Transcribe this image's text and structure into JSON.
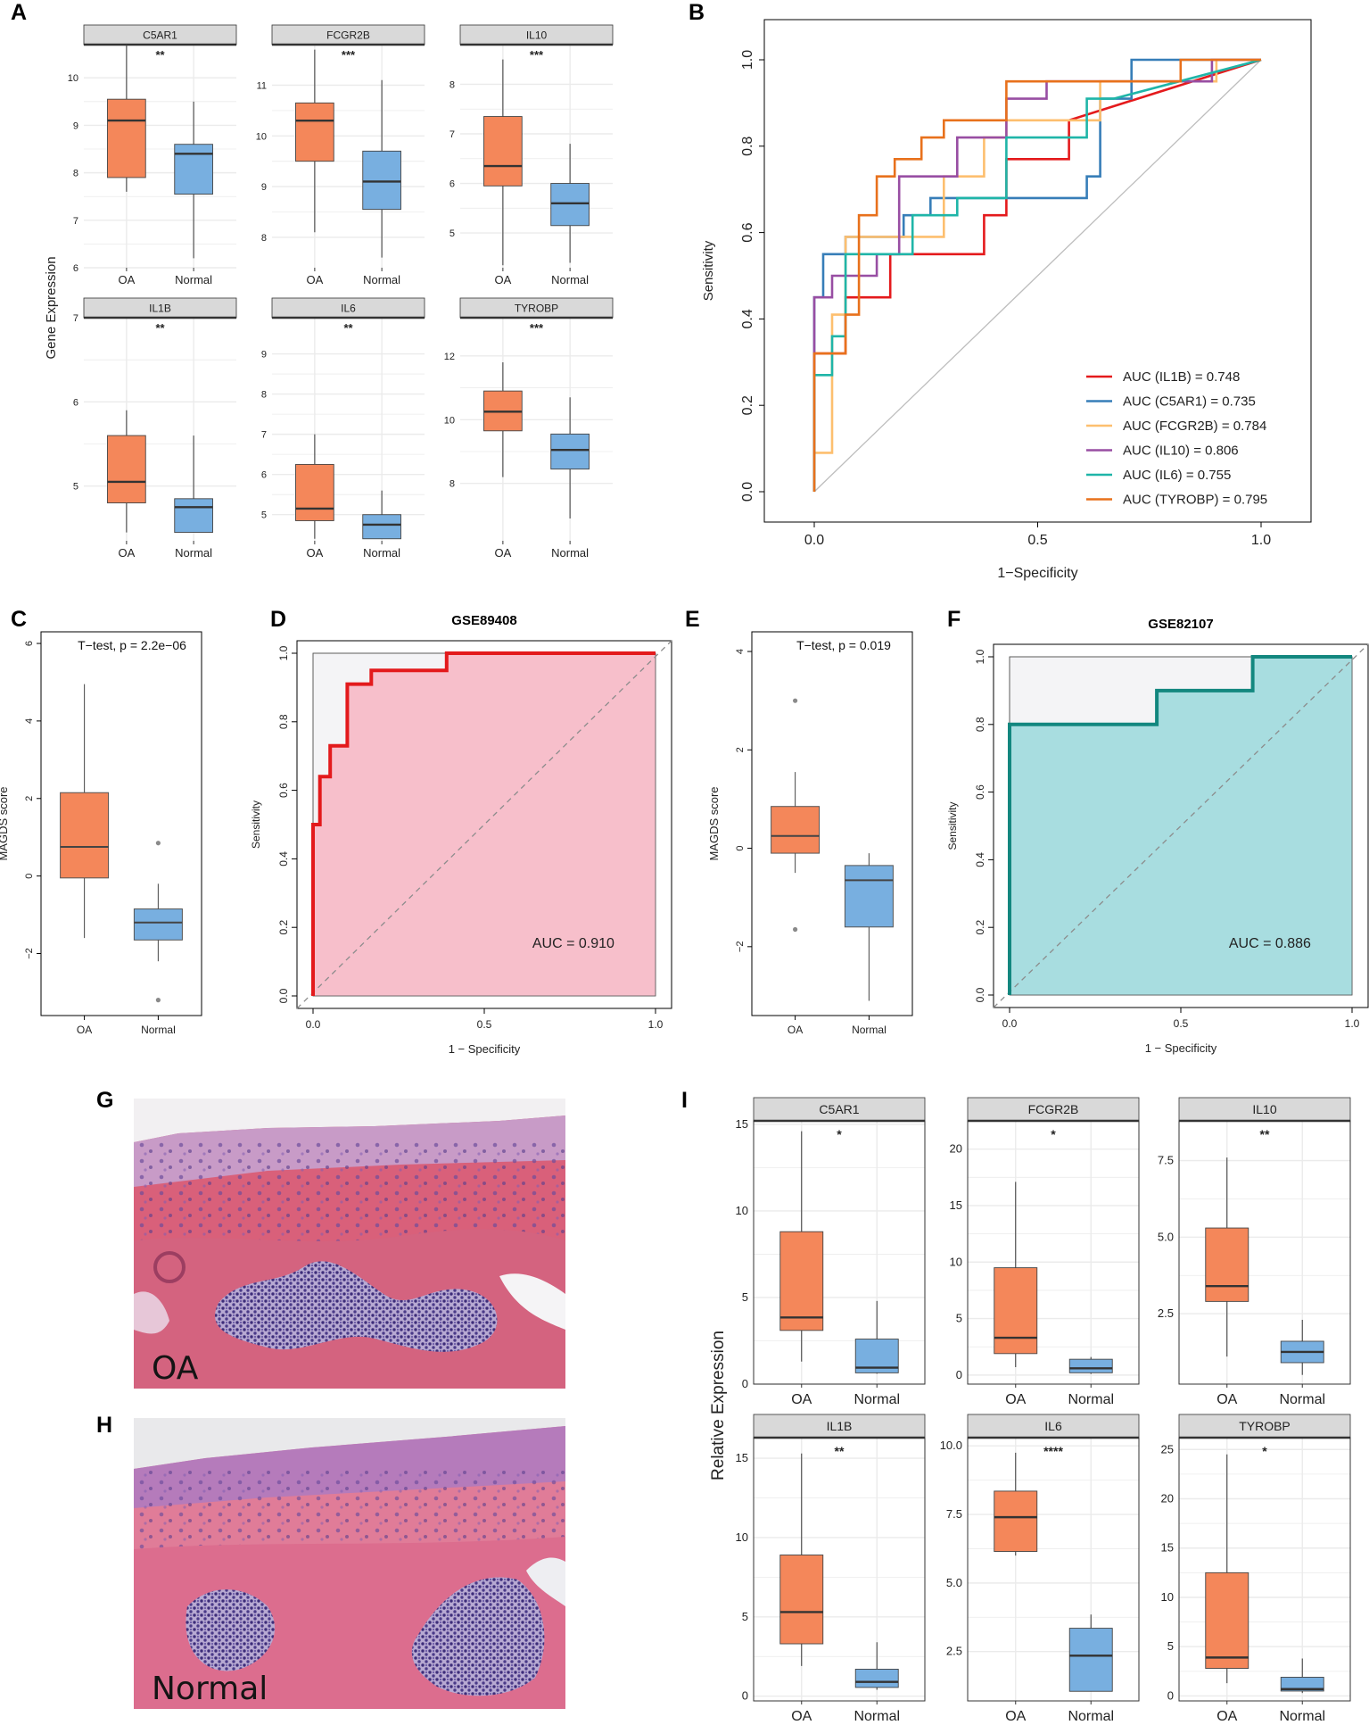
{
  "chart_data": [
    {
      "id": "A",
      "type": "boxplot",
      "panel_label": "A",
      "ylabel": "Gene Expression",
      "facets": [
        {
          "gene": "C5AR1",
          "signif": "**",
          "ylim": [
            6,
            10.7
          ],
          "yticks": [
            6,
            7,
            8,
            9,
            10
          ],
          "groups": [
            {
              "name": "OA",
              "whislo": 7.6,
              "q1": 7.9,
              "med": 9.1,
              "q3": 9.55,
              "whishi": 10.7
            },
            {
              "name": "Normal",
              "whislo": 6.2,
              "q1": 7.55,
              "med": 8.4,
              "q3": 8.6,
              "whishi": 9.5
            }
          ]
        },
        {
          "gene": "FCGR2B",
          "signif": "***",
          "ylim": [
            7.4,
            11.8
          ],
          "yticks": [
            8,
            9,
            10,
            11
          ],
          "groups": [
            {
              "name": "OA",
              "whislo": 8.1,
              "q1": 9.5,
              "med": 10.3,
              "q3": 10.65,
              "whishi": 11.7
            },
            {
              "name": "Normal",
              "whislo": 7.6,
              "q1": 8.55,
              "med": 9.1,
              "q3": 9.7,
              "whishi": 11.1
            }
          ]
        },
        {
          "gene": "IL10",
          "signif": "***",
          "ylim": [
            4.3,
            8.8
          ],
          "yticks": [
            5,
            6,
            7,
            8
          ],
          "groups": [
            {
              "name": "OA",
              "whislo": 4.35,
              "q1": 5.95,
              "med": 6.35,
              "q3": 7.35,
              "whishi": 8.5
            },
            {
              "name": "Normal",
              "whislo": 4.4,
              "q1": 5.15,
              "med": 5.6,
              "q3": 6.0,
              "whishi": 6.8
            }
          ]
        },
        {
          "gene": "IL1B",
          "signif": "**",
          "ylim": [
            4.35,
            7.0
          ],
          "yticks": [
            5,
            6,
            7
          ],
          "groups": [
            {
              "name": "OA",
              "whislo": 4.45,
              "q1": 4.8,
              "med": 5.05,
              "q3": 5.6,
              "whishi": 5.9
            },
            {
              "name": "Normal",
              "whislo": 4.45,
              "q1": 4.45,
              "med": 4.75,
              "q3": 4.85,
              "whishi": 5.6
            }
          ]
        },
        {
          "gene": "IL6",
          "signif": "**",
          "ylim": [
            4.35,
            9.9
          ],
          "yticks": [
            5,
            6,
            7,
            8,
            9
          ],
          "groups": [
            {
              "name": "OA",
              "whislo": 4.4,
              "q1": 4.85,
              "med": 5.15,
              "q3": 6.25,
              "whishi": 7.0
            },
            {
              "name": "Normal",
              "whislo": 4.4,
              "q1": 4.4,
              "med": 4.75,
              "q3": 5.0,
              "whishi": 5.6
            }
          ]
        },
        {
          "gene": "TYROBP",
          "signif": "***",
          "ylim": [
            6.2,
            13.2
          ],
          "yticks": [
            8,
            10,
            12
          ],
          "groups": [
            {
              "name": "OA",
              "whislo": 8.2,
              "q1": 9.65,
              "med": 10.25,
              "q3": 10.9,
              "whishi": 11.8
            },
            {
              "name": "Normal",
              "whislo": 6.9,
              "q1": 8.45,
              "med": 9.05,
              "q3": 9.55,
              "whishi": 10.7
            }
          ]
        }
      ]
    },
    {
      "id": "B",
      "type": "roc",
      "panel_label": "B",
      "xlabel": "1−Specificity",
      "ylabel": "Sensitivity",
      "xlim": [
        0,
        1
      ],
      "ylim": [
        0,
        1
      ],
      "xticks": [
        "0.0",
        "0.5",
        "1.0"
      ],
      "yticks": [
        "0.0",
        "0.2",
        "0.4",
        "0.6",
        "0.8",
        "1.0"
      ],
      "series": [
        {
          "name": "AUC (IL1B) = 0.748",
          "color": "#e41a1c",
          "x": [
            0,
            0,
            0.07,
            0.07,
            0.17,
            0.17,
            0.38,
            0.38,
            0.43,
            0.43,
            0.57,
            0.57,
            1
          ],
          "y": [
            0,
            0.32,
            0.32,
            0.45,
            0.45,
            0.55,
            0.55,
            0.64,
            0.64,
            0.77,
            0.77,
            0.86,
            1
          ]
        },
        {
          "name": "AUC (C5AR1) = 0.735",
          "color": "#377eb8",
          "x": [
            0,
            0,
            0.02,
            0.02,
            0.07,
            0.07,
            0.2,
            0.2,
            0.26,
            0.26,
            0.61,
            0.61,
            0.64,
            0.64,
            0.71,
            0.71,
            1
          ],
          "y": [
            0,
            0.45,
            0.45,
            0.55,
            0.55,
            0.59,
            0.59,
            0.64,
            0.64,
            0.68,
            0.68,
            0.73,
            0.73,
            0.91,
            0.91,
            1,
            1
          ]
        },
        {
          "name": "AUC (FCGR2B) = 0.784",
          "color": "#fdbf6f",
          "x": [
            0,
            0,
            0.04,
            0.04,
            0.07,
            0.07,
            0.29,
            0.29,
            0.38,
            0.38,
            0.43,
            0.43,
            0.64,
            0.64,
            0.9,
            0.9,
            1
          ],
          "y": [
            0,
            0.09,
            0.09,
            0.41,
            0.41,
            0.59,
            0.59,
            0.73,
            0.73,
            0.82,
            0.82,
            0.86,
            0.86,
            0.95,
            0.95,
            1,
            1
          ]
        },
        {
          "name": "AUC (IL10) = 0.806",
          "color": "#984ea3",
          "x": [
            0,
            0,
            0.04,
            0.04,
            0.14,
            0.14,
            0.19,
            0.19,
            0.32,
            0.32,
            0.43,
            0.43,
            0.52,
            0.52,
            0.89,
            0.89,
            1
          ],
          "y": [
            0,
            0.45,
            0.45,
            0.5,
            0.5,
            0.55,
            0.55,
            0.73,
            0.73,
            0.82,
            0.82,
            0.91,
            0.91,
            0.95,
            0.95,
            1,
            1
          ]
        },
        {
          "name": "AUC (IL6) = 0.755",
          "color": "#1fb5a8",
          "x": [
            0,
            0,
            0.04,
            0.04,
            0.07,
            0.07,
            0.22,
            0.22,
            0.32,
            0.32,
            0.43,
            0.43,
            0.61,
            0.61,
            0.67,
            1
          ],
          "y": [
            0,
            0.27,
            0.27,
            0.36,
            0.36,
            0.55,
            0.55,
            0.64,
            0.64,
            0.68,
            0.68,
            0.82,
            0.82,
            0.91,
            0.91,
            1
          ]
        },
        {
          "name": "AUC (TYROBP) = 0.795",
          "color": "#e8711c",
          "x": [
            0,
            0,
            0.07,
            0.07,
            0.1,
            0.1,
            0.14,
            0.14,
            0.18,
            0.18,
            0.24,
            0.24,
            0.29,
            0.29,
            0.43,
            0.43,
            0.82,
            0.82,
            1
          ],
          "y": [
            0,
            0.32,
            0.32,
            0.41,
            0.41,
            0.64,
            0.64,
            0.73,
            0.73,
            0.77,
            0.77,
            0.82,
            0.82,
            0.86,
            0.86,
            0.95,
            0.95,
            1,
            1
          ]
        }
      ]
    },
    {
      "id": "C",
      "type": "boxplot",
      "panel_label": "C",
      "ylabel": "MAGDS score",
      "annotation": "T−test, p = 2.2e−06",
      "ylim": [
        -3.6,
        6.3
      ],
      "yticks": [
        "−2",
        "0",
        "2",
        "4",
        "6"
      ],
      "ytick_values": [
        -2,
        0,
        2,
        4,
        6
      ],
      "groups": [
        {
          "name": "OA",
          "whislo": -1.6,
          "q1": -0.05,
          "med": 0.75,
          "q3": 2.15,
          "whishi": 4.95,
          "outliers": []
        },
        {
          "name": "Normal",
          "whislo": -2.2,
          "q1": -1.65,
          "med": -1.2,
          "q3": -0.85,
          "whishi": -0.2,
          "outliers": [
            0.85,
            -3.2
          ]
        }
      ]
    },
    {
      "id": "D",
      "type": "roc",
      "panel_label": "D",
      "title": "GSE89408",
      "xlabel": "1 − Specificity",
      "ylabel": "Sensitivity",
      "auc_label": "AUC = 0.910",
      "color": "#e31a1c",
      "fill": "#f7bfcb",
      "xticks": [
        "0.0",
        "0.5",
        "1.0"
      ],
      "yticks": [
        "0.0",
        "0.2",
        "0.4",
        "0.6",
        "0.8",
        "1.0"
      ],
      "x": [
        0,
        0,
        0.02,
        0.02,
        0.05,
        0.05,
        0.1,
        0.1,
        0.17,
        0.17,
        0.39,
        0.39,
        0.68,
        0.68,
        1
      ],
      "y": [
        0,
        0.5,
        0.5,
        0.64,
        0.64,
        0.73,
        0.73,
        0.91,
        0.91,
        0.95,
        0.95,
        1,
        1,
        1,
        1
      ]
    },
    {
      "id": "E",
      "type": "boxplot",
      "panel_label": "E",
      "ylabel": "MAGDS score",
      "annotation": "T−test, p = 0.019",
      "ylim": [
        -3.4,
        4.4
      ],
      "yticks": [
        "−2",
        "0",
        "2",
        "4"
      ],
      "ytick_values": [
        -2,
        0,
        2,
        4
      ],
      "groups": [
        {
          "name": "OA",
          "whislo": -0.5,
          "q1": -0.1,
          "med": 0.25,
          "q3": 0.85,
          "whishi": 1.55,
          "outliers": [
            3.0,
            -1.65
          ]
        },
        {
          "name": "Normal",
          "whislo": -3.1,
          "q1": -1.6,
          "med": -0.65,
          "q3": -0.35,
          "whishi": -0.1,
          "outliers": []
        }
      ]
    },
    {
      "id": "F",
      "type": "roc",
      "panel_label": "F",
      "title": "GSE82107",
      "xlabel": "1 − Specificity",
      "ylabel": "Sensitivity",
      "auc_label": "AUC = 0.886",
      "color": "#13877f",
      "fill": "#a8dde0",
      "xticks": [
        "0.0",
        "0.5",
        "1.0"
      ],
      "yticks": [
        "0.0",
        "0.2",
        "0.4",
        "0.6",
        "0.8",
        "1.0"
      ],
      "x": [
        0,
        0,
        0.43,
        0.43,
        0.71,
        0.71,
        1
      ],
      "y": [
        0,
        0.8,
        0.8,
        0.9,
        0.9,
        1,
        1
      ]
    },
    {
      "id": "I",
      "type": "boxplot",
      "panel_label": "I",
      "ylabel": "Relative Expression",
      "facets": [
        {
          "gene": "C5AR1",
          "signif": "*",
          "ylim": [
            0,
            15.2
          ],
          "yticks": [
            0,
            5,
            10,
            15
          ],
          "groups": [
            {
              "name": "OA",
              "whislo": 1.3,
              "q1": 3.1,
              "med": 3.85,
              "q3": 8.8,
              "whishi": 14.6
            },
            {
              "name": "Normal",
              "whislo": 0.6,
              "q1": 0.65,
              "med": 0.95,
              "q3": 2.6,
              "whishi": 4.8
            }
          ]
        },
        {
          "name_note": "",
          "gene": "FCGR2B",
          "signif": "*",
          "ylim": [
            -0.8,
            22.5
          ],
          "yticks": [
            0,
            5,
            10,
            15,
            20
          ],
          "groups": [
            {
              "name": "OA",
              "whislo": 0.7,
              "q1": 1.9,
              "med": 3.3,
              "q3": 9.5,
              "whishi": 17.1
            },
            {
              "name": "Normal",
              "whislo": 0.1,
              "q1": 0.2,
              "med": 0.6,
              "q3": 1.4,
              "whishi": 1.6
            }
          ]
        },
        {
          "gene": "IL10",
          "signif": "**",
          "ylim": [
            0.2,
            8.8
          ],
          "yticks": [
            "2.5",
            "5.0",
            "7.5"
          ],
          "ytick_values": [
            2.5,
            5.0,
            7.5
          ],
          "groups": [
            {
              "name": "OA",
              "whislo": 1.1,
              "q1": 2.9,
              "med": 3.4,
              "q3": 5.3,
              "whishi": 7.6
            },
            {
              "name": "Normal",
              "whislo": 0.5,
              "q1": 0.9,
              "med": 1.25,
              "q3": 1.6,
              "whishi": 2.3
            }
          ]
        },
        {
          "gene": "IL1B",
          "signif": "**",
          "ylim": [
            -0.3,
            16.3
          ],
          "yticks": [
            0,
            5,
            10,
            15
          ],
          "groups": [
            {
              "name": "OA",
              "whislo": 1.9,
              "q1": 3.3,
              "med": 5.3,
              "q3": 8.9,
              "whishi": 15.3
            },
            {
              "name": "Normal",
              "whislo": 0.4,
              "q1": 0.55,
              "med": 0.9,
              "q3": 1.7,
              "whishi": 3.4
            }
          ]
        },
        {
          "gene": "IL6",
          "signif": "****",
          "ylim": [
            0.7,
            10.3
          ],
          "yticks": [
            "2.5",
            "5.0",
            "7.5",
            "10.0"
          ],
          "ytick_values": [
            2.5,
            5.0,
            7.5,
            10.0
          ],
          "groups": [
            {
              "name": "OA",
              "whislo": 6.0,
              "q1": 6.15,
              "med": 7.4,
              "q3": 8.35,
              "whishi": 9.75
            },
            {
              "name": "Normal",
              "whislo": 1.05,
              "q1": 1.05,
              "med": 2.35,
              "q3": 3.35,
              "whishi": 3.85
            }
          ]
        },
        {
          "gene": "TYROBP",
          "signif": "*",
          "ylim": [
            -0.5,
            26.2
          ],
          "yticks": [
            0,
            5,
            10,
            15,
            20,
            25
          ],
          "groups": [
            {
              "name": "OA",
              "whislo": 1.3,
              "q1": 2.8,
              "med": 3.9,
              "q3": 12.5,
              "whishi": 24.5
            },
            {
              "name": "Normal",
              "whislo": 0.3,
              "q1": 0.5,
              "med": 0.7,
              "q3": 1.9,
              "whishi": 3.8
            }
          ]
        }
      ]
    }
  ],
  "histology": {
    "G": {
      "panel_label": "G",
      "caption": "OA"
    },
    "H": {
      "panel_label": "H",
      "caption": "Normal"
    }
  },
  "colors": {
    "oa": "#f4875a",
    "normal": "#78afe0",
    "strip": "#d9d9d9",
    "grid": "#ebebeb",
    "diag": "#bdbdbd"
  }
}
